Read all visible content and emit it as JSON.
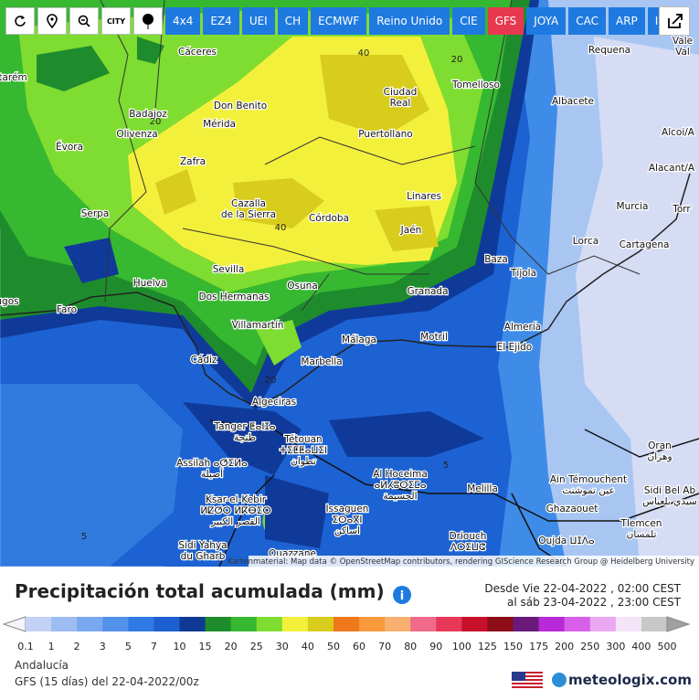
{
  "toolbar": {
    "icon_label": "CITY",
    "buttons": [
      "4x4",
      "EZ4",
      "UEI",
      "CH",
      "ECMWF",
      "Reino Unido",
      "CIE",
      "GFS",
      "JOYA",
      "CAC",
      "ARP",
      "IMF"
    ],
    "active": "GFS"
  },
  "map": {
    "places": [
      [
        "Cáceres"
      ],
      [
        "Tomelloso"
      ],
      [
        "Requena"
      ],
      [
        "Vale",
        "Val"
      ],
      [
        "tarém"
      ],
      [
        "Badajoz"
      ],
      [
        "Don Benito"
      ],
      [
        "Mérida"
      ],
      [
        "Olivenza"
      ],
      [
        "Ciudad",
        "Real"
      ],
      [
        "Albacete"
      ],
      [
        "Évora"
      ],
      [
        "Puertollano"
      ],
      [
        "Alcoi/A"
      ],
      [
        "Zafra"
      ],
      [
        "Alacant/A"
      ],
      [
        "Linares"
      ],
      [
        "Murcia"
      ],
      [
        "Torr"
      ],
      [
        "Serpa"
      ],
      [
        "Cazalla",
        "de la Sierra"
      ],
      [
        "Córdoba"
      ],
      [
        "Jaén"
      ],
      [
        "Lorca"
      ],
      [
        "Cartagena"
      ],
      [
        "Sevilla"
      ],
      [
        "Baza"
      ],
      [
        "Tíjola"
      ],
      [
        "Huelva"
      ],
      [
        "Dos Hermanas"
      ],
      [
        "Osuna"
      ],
      [
        "Granada"
      ],
      [
        "ugos"
      ],
      [
        "Faro"
      ],
      [
        "Almería"
      ],
      [
        "Villamartín"
      ],
      [
        "Málaga"
      ],
      [
        "Motril"
      ],
      [
        "El Ejido"
      ],
      [
        "Cádiz"
      ],
      [
        "Marbella"
      ],
      [
        "Algeciras"
      ],
      [
        "Tanger ⵟⴰⵏⵊⴰ",
        "طنجة"
      ],
      [
        "Tétouan",
        "ⵜⵉⵟⵟⴰⵡⵉⵏ",
        "تطوان"
      ],
      [
        "Assilah ⴰⵚⵉⵍⴰ",
        "أصيلة"
      ],
      [
        "Al Hoceima",
        "ⴰⵍⵃⵓⵙⵉⵎⴰ",
        "الحسيمة"
      ],
      [
        "Melilla"
      ],
      [
        "Oran",
        "وهران"
      ],
      [
        "Ain Témouchent",
        "عين تموشنت"
      ],
      [
        "Sidi Bel Ab",
        "سيدي بلعباس"
      ],
      [
        "Ghazaouet"
      ],
      [
        "Tlemcen",
        "تلمسان"
      ],
      [
        "Ksar-el-Kebir",
        "ⵍⵇⵚⵔ ⵍⴽⴱⵉⵔ",
        "القصر الكبير"
      ],
      [
        "Issaguen",
        "ⵉⵙⴰⴳⵏ",
        "اساكن"
      ],
      [
        "Driouch",
        "ⴷⵔⵉⵡⵛ"
      ],
      [
        "Oujda ⵡⵊⴷⴰ"
      ],
      [
        "Sidi Yahya",
        "du Gharb"
      ],
      [
        "Ouazzane"
      ]
    ],
    "contour_labels": [
      "40",
      "20",
      "40",
      "20",
      "5",
      "5",
      "20"
    ],
    "attribution": "Kartenmaterial: Map data © OpenStreetMap contributors, rendering GIScience Research Group @ Heidelberg University"
  },
  "legend": {
    "title": "Precipitación total acumulada (mm)",
    "date_from": "Desde Vie 22-04-2022 , 02:00 CEST",
    "date_to": "al sáb 23-04-2022 , 23:00 CEST",
    "scale": [
      "0.1",
      "1",
      "2",
      "3",
      "5",
      "7",
      "10",
      "15",
      "20",
      "25",
      "30",
      "40",
      "50",
      "60",
      "70",
      "80",
      "90",
      "100",
      "125",
      "150",
      "175",
      "200",
      "250",
      "300",
      "400",
      "500"
    ]
  },
  "footer": {
    "region": "Andalucía",
    "model": "GFS (15 días) del 22-04-2022/00z",
    "brand": "meteologix.com"
  }
}
